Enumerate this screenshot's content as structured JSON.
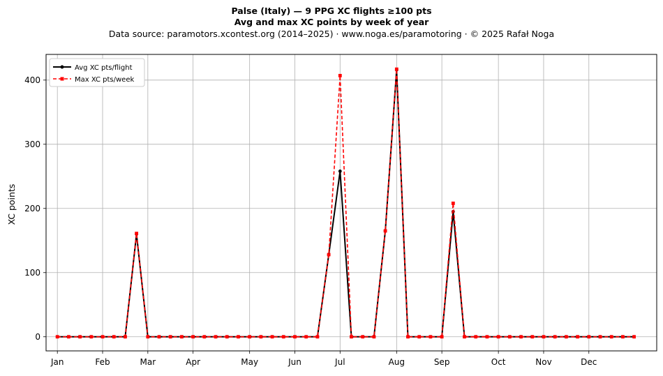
{
  "header": {
    "title_line1": "Palse (Italy)  —  9 PPG XC flights ≥100 pts",
    "title_line2": "Avg and max XC points by week of year",
    "subtitle": "Data source: paramotors.xcontest.org (2014–2025)  ·  www.noga.es/paramotoring  ·  © 2025 Rafał Noga"
  },
  "chart_data": {
    "type": "line",
    "xlabel": "",
    "ylabel": "XC points",
    "xlim": [
      0,
      54
    ],
    "ylim": [
      -22,
      440
    ],
    "grid": true,
    "legend_position": "top-left",
    "x_ticks": [
      {
        "week": 1,
        "label": "Jan"
      },
      {
        "week": 5,
        "label": "Feb"
      },
      {
        "week": 9,
        "label": "Mar"
      },
      {
        "week": 13,
        "label": "Apr"
      },
      {
        "week": 18,
        "label": "May"
      },
      {
        "week": 22,
        "label": "Jun"
      },
      {
        "week": 26,
        "label": "Jul"
      },
      {
        "week": 31,
        "label": "Aug"
      },
      {
        "week": 35,
        "label": "Sep"
      },
      {
        "week": 40,
        "label": "Oct"
      },
      {
        "week": 44,
        "label": "Nov"
      },
      {
        "week": 48,
        "label": "Dec"
      }
    ],
    "y_ticks": [
      0,
      100,
      200,
      300,
      400
    ],
    "x": [
      1,
      2,
      3,
      4,
      5,
      6,
      7,
      8,
      9,
      10,
      11,
      12,
      13,
      14,
      15,
      16,
      17,
      18,
      19,
      20,
      21,
      22,
      23,
      24,
      25,
      26,
      27,
      28,
      29,
      30,
      31,
      32,
      33,
      34,
      35,
      36,
      37,
      38,
      39,
      40,
      41,
      42,
      43,
      44,
      45,
      46,
      47,
      48,
      49,
      50,
      51,
      52
    ],
    "series": [
      {
        "name": "Avg XC pts/flight",
        "color": "#000000",
        "style": "solid",
        "marker": "circle",
        "values": [
          0,
          0,
          0,
          0,
          0,
          0,
          0,
          160,
          0,
          0,
          0,
          0,
          0,
          0,
          0,
          0,
          0,
          0,
          0,
          0,
          0,
          0,
          0,
          0,
          128,
          258,
          0,
          0,
          0,
          165,
          416,
          0,
          0,
          0,
          0,
          195,
          0,
          0,
          0,
          0,
          0,
          0,
          0,
          0,
          0,
          0,
          0,
          0,
          0,
          0,
          0,
          0
        ]
      },
      {
        "name": "Max XC pts/week",
        "color": "#ff0000",
        "style": "dashed",
        "marker": "square",
        "values": [
          0,
          0,
          0,
          0,
          0,
          0,
          0,
          161,
          0,
          0,
          0,
          0,
          0,
          0,
          0,
          0,
          0,
          0,
          0,
          0,
          0,
          0,
          0,
          0,
          128,
          407,
          0,
          0,
          0,
          165,
          417,
          0,
          0,
          0,
          0,
          208,
          0,
          0,
          0,
          0,
          0,
          0,
          0,
          0,
          0,
          0,
          0,
          0,
          0,
          0,
          0,
          0
        ]
      }
    ]
  }
}
